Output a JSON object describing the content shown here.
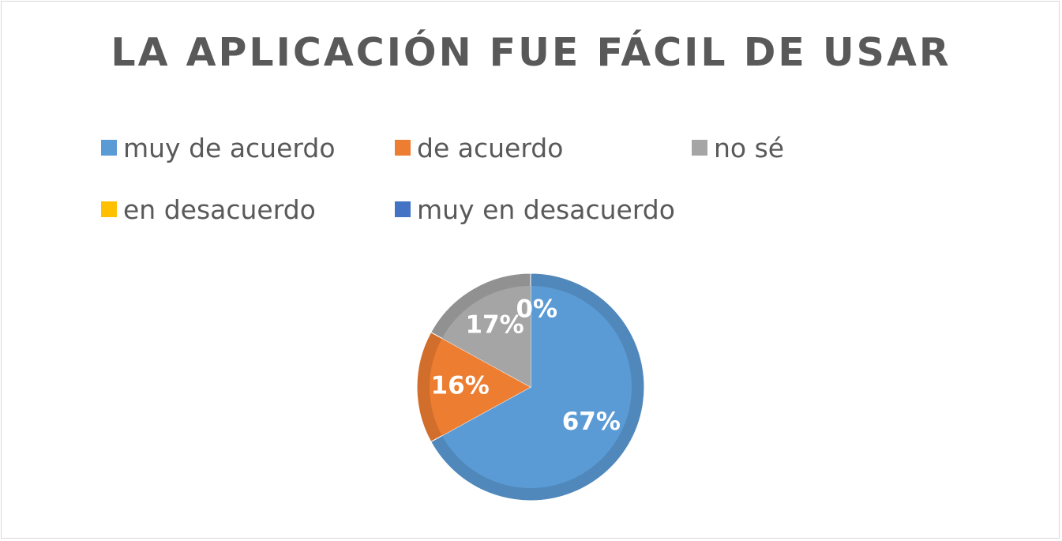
{
  "chart_data": {
    "type": "pie",
    "title": "LA APLICACIÓN FUE FÁCIL DE USAR",
    "categories": [
      "muy de acuerdo",
      "de acuerdo",
      "no sé",
      "en desacuerdo",
      "muy en desacuerdo"
    ],
    "values": [
      67,
      16,
      17,
      0,
      0
    ],
    "data_labels": [
      "67%",
      "16%",
      "17%",
      "",
      "0%"
    ],
    "colors": [
      "#5b9bd5",
      "#ed7d31",
      "#a5a5a5",
      "#ffc000",
      "#4472c4"
    ],
    "legend_position": "top",
    "start_angle_deg": 0,
    "direction": "clockwise"
  }
}
